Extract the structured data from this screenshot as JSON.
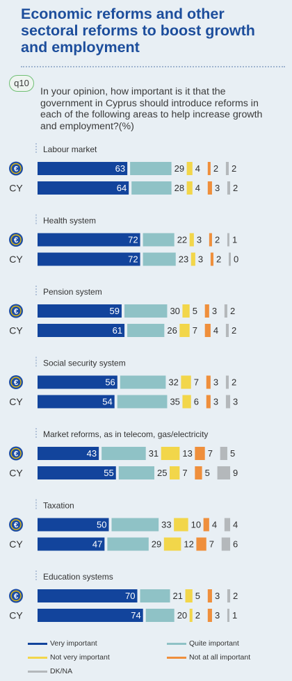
{
  "header": {
    "title": "Economic reforms and other sectoral reforms to boost growth and employment",
    "question_id": "q10",
    "question": "In your opinion, how important is it that the government in Cyprus should introduce reforms in each of the following areas to help increase growth and employment?(%)"
  },
  "colors": {
    "very_important": "#12449c",
    "quite_important": "#8fc2c6",
    "not_very_important": "#f2d64a",
    "not_at_all_important": "#ef8f3c",
    "dk_na": "#b4b8bb",
    "euro_badge": "#1f4ea3"
  },
  "chart_data": {
    "type": "bar",
    "stacked": true,
    "orientation": "horizontal",
    "unit": "%",
    "row_labels": [
      "€",
      "CY"
    ],
    "legend": [
      "Very important",
      "Quite important",
      "Not very important",
      "Not at all important",
      "DK/NA"
    ],
    "categories": [
      "Labour market",
      "Health system",
      "Pension system",
      "Social security system",
      "Market reforms, as in telecom, gas/electricity",
      "Taxation",
      "Education systems"
    ],
    "series": [
      {
        "name": "Very important",
        "eu": [
          63,
          72,
          59,
          56,
          43,
          50,
          70
        ],
        "cy": [
          64,
          72,
          61,
          54,
          55,
          47,
          74
        ]
      },
      {
        "name": "Quite important",
        "eu": [
          29,
          22,
          30,
          32,
          31,
          33,
          21
        ],
        "cy": [
          28,
          23,
          26,
          35,
          25,
          29,
          20
        ]
      },
      {
        "name": "Not very important",
        "eu": [
          4,
          3,
          5,
          7,
          13,
          10,
          5
        ],
        "cy": [
          4,
          3,
          7,
          6,
          7,
          12,
          2
        ]
      },
      {
        "name": "Not at all important",
        "eu": [
          2,
          2,
          3,
          3,
          7,
          4,
          3
        ],
        "cy": [
          3,
          2,
          4,
          3,
          5,
          7,
          3
        ]
      },
      {
        "name": "DK/NA",
        "eu": [
          2,
          1,
          2,
          2,
          5,
          4,
          2
        ],
        "cy": [
          2,
          0,
          2,
          3,
          9,
          6,
          1
        ]
      }
    ]
  }
}
